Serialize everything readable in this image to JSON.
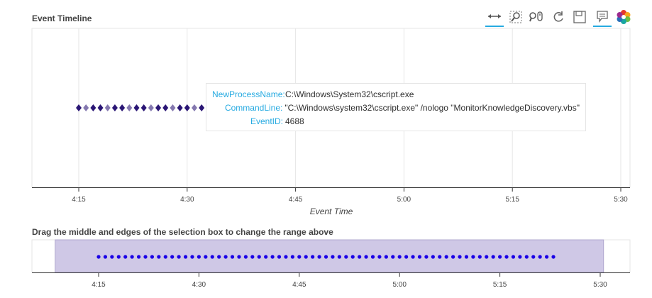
{
  "main_title": "Event Timeline",
  "range_title": "Drag the middle and edges of the selection box to change the range above",
  "toolbar": {
    "tools": [
      {
        "name": "pan-tool-icon",
        "glyph": "↔",
        "active": true
      },
      {
        "name": "box-zoom-icon",
        "glyph": "🔍",
        "active": false
      },
      {
        "name": "wheel-zoom-icon",
        "glyph": "⚲",
        "active": false
      },
      {
        "name": "reset-icon",
        "glyph": "↻",
        "active": false
      },
      {
        "name": "save-icon",
        "glyph": "💾",
        "active": false
      },
      {
        "name": "hover-icon",
        "glyph": "💬",
        "active": true
      },
      {
        "name": "bokeh-logo-icon",
        "glyph": "✿",
        "active": false
      }
    ]
  },
  "tooltip": {
    "rows": [
      {
        "key": "NewProcessName:",
        "value": "C:\\Windows\\System32\\cscript.exe"
      },
      {
        "key": "CommandLine:",
        "value": "\"C:\\Windows\\system32\\cscript.exe\" /nologo \"MonitorKnowledgeDiscovery.vbs\""
      },
      {
        "key": "EventID:",
        "value": "4688"
      }
    ]
  },
  "chart_data": [
    {
      "type": "scatter",
      "title": "Event Timeline",
      "xlabel": "Event Time",
      "x_ticks": [
        "4:15",
        "4:30",
        "4:45",
        "5:00",
        "5:15",
        "5:30"
      ],
      "x_tick_minutes": [
        255,
        270,
        285,
        300,
        315,
        330
      ],
      "xlim_minutes": [
        248.5,
        330.5
      ],
      "marker": "diamond",
      "marker_color": "#1f0a6e",
      "points_minutes": [
        255.0,
        256.0,
        257.0,
        258.0,
        259.0,
        260.0,
        261.0,
        262.0,
        263.0,
        264.0,
        265.0,
        266.0,
        267.0,
        268.0,
        269.0,
        270.0,
        271.0,
        272.0
      ]
    },
    {
      "type": "scatter",
      "title": "Drag the middle and edges of the selection box to change the range above",
      "x_ticks": [
        "4:15",
        "4:30",
        "4:45",
        "5:00",
        "5:15",
        "5:30"
      ],
      "x_tick_minutes": [
        255,
        270,
        285,
        300,
        315,
        330
      ],
      "selection_minutes": [
        248.5,
        330.5
      ],
      "marker": "circle",
      "marker_color": "#1a00e6",
      "selection_color": "#cfc8e6",
      "points_start": 255,
      "points_end": 323,
      "points_step": 1
    }
  ]
}
